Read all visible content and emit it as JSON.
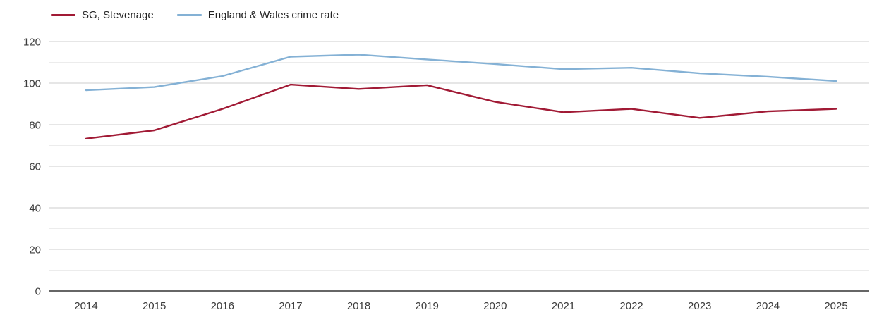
{
  "chart_data": {
    "type": "line",
    "title": "",
    "xlabel": "",
    "ylabel": "",
    "categories": [
      "2014",
      "2015",
      "2016",
      "2017",
      "2018",
      "2019",
      "2020",
      "2021",
      "2022",
      "2023",
      "2024",
      "2025"
    ],
    "series": [
      {
        "name": "SG, Stevenage",
        "color": "#a11a35",
        "values": [
          73.3,
          77.3,
          87.6,
          99.3,
          97.2,
          99.0,
          91.0,
          86.0,
          87.6,
          83.3,
          86.4,
          87.6
        ]
      },
      {
        "name": "England & Wales crime rate",
        "color": "#84b1d5",
        "values": [
          96.6,
          98.1,
          103.4,
          112.7,
          113.7,
          111.4,
          109.2,
          106.7,
          107.4,
          104.7,
          103.1,
          101.0
        ]
      }
    ],
    "ylim": [
      0,
      120
    ],
    "y_major_ticks": [
      0,
      20,
      40,
      60,
      80,
      100,
      120
    ],
    "y_minor_ticks": [
      10,
      30,
      50,
      70,
      90,
      110
    ],
    "grid": "horizontal",
    "legend_position": "top-left"
  },
  "style": {
    "major_grid_color": "#cccccc",
    "minor_grid_color": "#ececec",
    "axis_line_color": "#333333",
    "tick_label_color": "#3c3c3c",
    "background_color": "#ffffff"
  }
}
